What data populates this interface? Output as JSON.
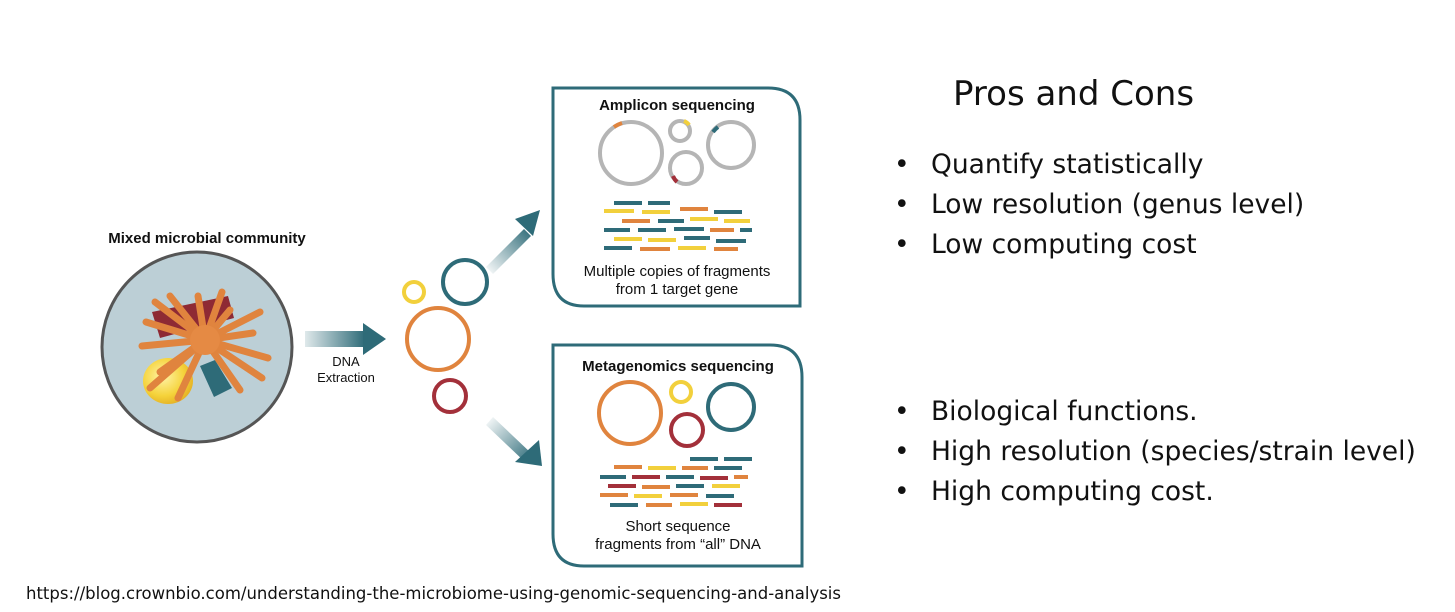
{
  "diagram": {
    "community_label": "Mixed microbial community",
    "extraction_label_line1": "DNA",
    "extraction_label_line2": "Extraction",
    "amplicon": {
      "title": "Amplicon sequencing",
      "caption_line1": "Multiple copies of fragments",
      "caption_line2": "from 1 target gene"
    },
    "metagenomics": {
      "title": "Metagenomics sequencing",
      "caption_line1": "Short sequence",
      "caption_line2": "fragments from “all” DNA"
    }
  },
  "pros_cons": {
    "title": "Pros and Cons",
    "amplicon_points": [
      "Quantify statistically",
      "Low resolution (genus level)",
      "Low computing cost"
    ],
    "metagenomics_points": [
      "Biological functions.",
      "High resolution (species/strain level)",
      "High computing cost."
    ]
  },
  "source_url": "https://blog.crownbio.com/understanding-the-microbiome-using-genomic-sequencing-and-analysis",
  "colors": {
    "teal": "#2e6b78",
    "orange": "#e0843e",
    "yellow": "#f2d03c",
    "red": "#a3303a",
    "gray": "#b5b5b5",
    "cell_bg": "#bccfd6",
    "dark_red": "#8e2a34"
  }
}
